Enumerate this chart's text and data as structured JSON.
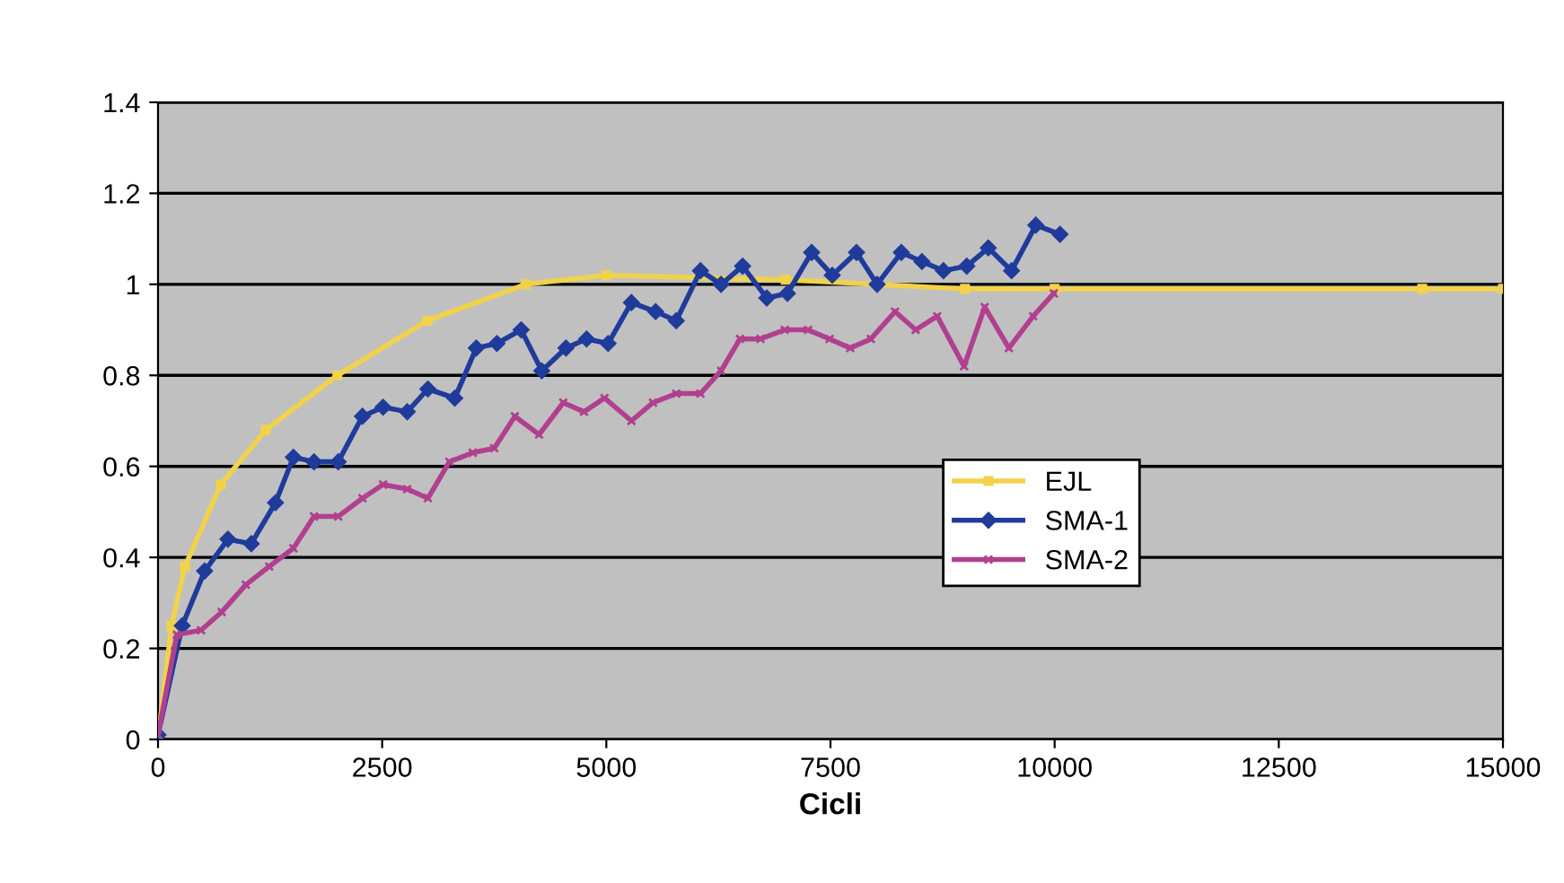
{
  "chart_data": {
    "type": "line",
    "xlabel": "Cicli",
    "xlim": [
      0,
      15000
    ],
    "xticks": [
      0,
      2500,
      5000,
      7500,
      10000,
      12500,
      15000
    ],
    "ylim": [
      0,
      1.4
    ],
    "yticks": [
      0,
      0.2,
      0.4,
      0.6,
      0.8,
      1,
      1.2,
      1.4
    ],
    "grid": "y",
    "legend": "right",
    "series": [
      {
        "name": "EJL",
        "color": "#f2d24a",
        "marker": "square",
        "x": [
          0,
          150,
          300,
          700,
          1200,
          2000,
          3000,
          4100,
          5000,
          7000,
          9000,
          10000,
          14100,
          15000
        ],
        "values": [
          0,
          0.25,
          0.38,
          0.56,
          0.68,
          0.8,
          0.92,
          1.0,
          1.02,
          1.01,
          0.99,
          0.99,
          0.99,
          0.99
        ]
      },
      {
        "name": "SMA-1",
        "color": "#1f3b9b",
        "marker": "diamond",
        "x": [
          0,
          270,
          520,
          780,
          1040,
          1310,
          1510,
          1740,
          2010,
          2280,
          2510,
          2780,
          3010,
          3310,
          3550,
          3780,
          4050,
          4280,
          4550,
          4780,
          5020,
          5280,
          5550,
          5780,
          6050,
          6280,
          6520,
          6790,
          7020,
          7290,
          7520,
          7790,
          8020,
          8290,
          8520,
          8760,
          9020,
          9260,
          9520,
          9790,
          10060
        ],
        "values": [
          0.01,
          0.25,
          0.37,
          0.44,
          0.43,
          0.52,
          0.62,
          0.61,
          0.61,
          0.71,
          0.73,
          0.72,
          0.77,
          0.75,
          0.86,
          0.87,
          0.9,
          0.81,
          0.86,
          0.88,
          0.87,
          0.96,
          0.94,
          0.92,
          1.03,
          1.0,
          1.04,
          0.97,
          0.98,
          1.07,
          1.02,
          1.07,
          1.0,
          1.07,
          1.05,
          1.03,
          1.04,
          1.08,
          1.03,
          1.13,
          1.11
        ]
      },
      {
        "name": "SMA-2",
        "color": "#b0408f",
        "marker": "cross",
        "x": [
          0,
          210,
          480,
          710,
          980,
          1240,
          1510,
          1740,
          2010,
          2280,
          2510,
          2780,
          3010,
          3250,
          3510,
          3750,
          3980,
          4250,
          4520,
          4750,
          4980,
          5280,
          5520,
          5780,
          6050,
          6280,
          6490,
          6720,
          6990,
          7250,
          7490,
          7720,
          7950,
          8220,
          8450,
          8690,
          8990,
          9220,
          9490,
          9760,
          9990
        ],
        "values": [
          0.01,
          0.23,
          0.24,
          0.28,
          0.34,
          0.38,
          0.42,
          0.49,
          0.49,
          0.53,
          0.56,
          0.55,
          0.53,
          0.61,
          0.63,
          0.64,
          0.71,
          0.67,
          0.74,
          0.72,
          0.75,
          0.7,
          0.74,
          0.76,
          0.76,
          0.81,
          0.88,
          0.88,
          0.9,
          0.9,
          0.88,
          0.86,
          0.88,
          0.94,
          0.9,
          0.93,
          0.82,
          0.95,
          0.86,
          0.93,
          0.98
        ]
      }
    ]
  }
}
